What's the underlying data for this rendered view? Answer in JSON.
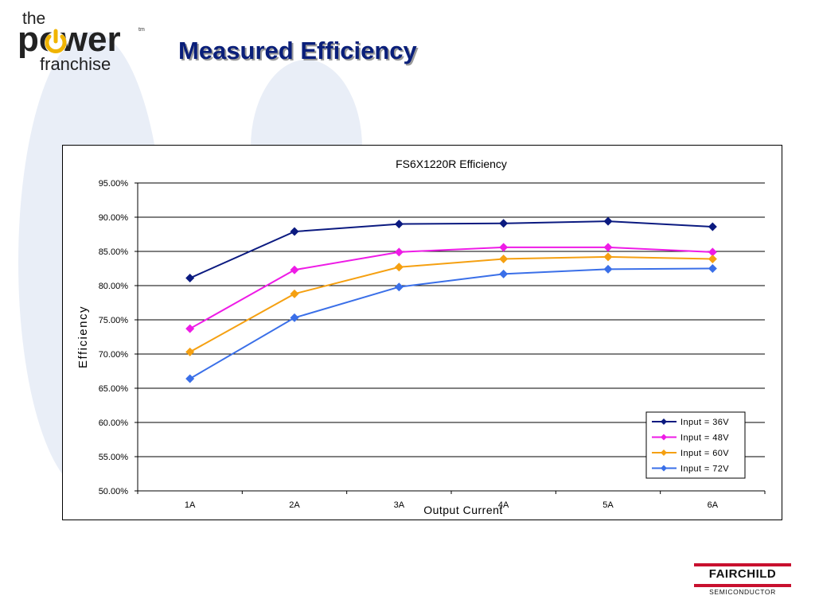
{
  "slide": {
    "title": "Measured Efficiency",
    "logo": {
      "the": "the",
      "power": "power",
      "franchise": "franchise",
      "tm": "tm"
    },
    "company_logo": {
      "name": "FAIRCHILD",
      "sub": "SEMICONDUCTOR"
    },
    "colors": {
      "title": "#0a1f7a",
      "watermark": "#e9eef7",
      "accent": "#f0b400",
      "brand_red": "#c8102e"
    }
  },
  "chart_data": {
    "type": "line",
    "title": "FS6X1220R Efficiency",
    "xlabel": "Output Current",
    "ylabel": "Efficiency",
    "categories": [
      "1A",
      "2A",
      "3A",
      "4A",
      "5A",
      "6A"
    ],
    "ylim": [
      0.5,
      0.95
    ],
    "y_ticks": [
      "50.00%",
      "55.00%",
      "60.00%",
      "65.00%",
      "70.00%",
      "75.00%",
      "80.00%",
      "85.00%",
      "90.00%",
      "95.00%"
    ],
    "grid": "horizontal",
    "legend_position": "bottom-right",
    "series": [
      {
        "name": "Input = 36V",
        "color": "#0b1a80",
        "values": [
          0.811,
          0.879,
          0.89,
          0.891,
          0.894,
          0.886
        ]
      },
      {
        "name": "Input = 48V",
        "color": "#ee1be6",
        "values": [
          0.737,
          0.823,
          0.849,
          0.856,
          0.856,
          0.849
        ]
      },
      {
        "name": "Input = 60V",
        "color": "#f5a011",
        "values": [
          0.703,
          0.788,
          0.827,
          0.839,
          0.842,
          0.839
        ]
      },
      {
        "name": "Input = 72V",
        "color": "#3a6fe8",
        "values": [
          0.664,
          0.753,
          0.798,
          0.817,
          0.824,
          0.825
        ]
      }
    ]
  }
}
